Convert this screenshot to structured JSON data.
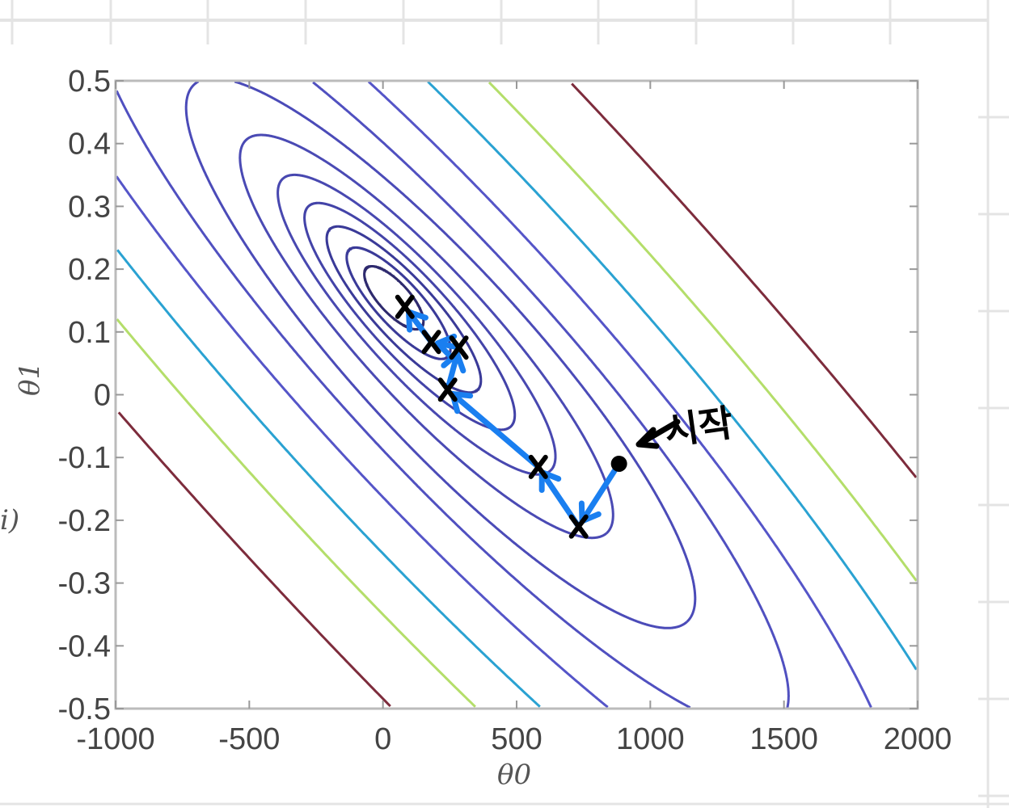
{
  "chart_data": {
    "type": "contour",
    "xlabel": "θ0",
    "ylabel": "θ1",
    "xlim": [
      -1000,
      2000
    ],
    "ylim": [
      -0.5,
      0.5
    ],
    "x_ticks": [
      "-1000",
      "-500",
      "0",
      "500",
      "1000",
      "1500",
      "2000"
    ],
    "y_ticks": [
      "0.5",
      "0.4",
      "0.3",
      "0.2",
      "0.1",
      "0",
      "-0.1",
      "-0.2",
      "-0.3",
      "-0.4",
      "-0.5"
    ],
    "grid": false,
    "contour_colors": [
      "#2e2a6e",
      "#3a3a98",
      "#3a3a98",
      "#4343a8",
      "#4848b0",
      "#4a4ab4",
      "#4b4bb8",
      "#5050c0",
      "#5555c8",
      "#2aa2d2",
      "#b4de6a",
      "#7d2c3c"
    ],
    "descent_path": {
      "color": "#1a7ff0",
      "points": [
        [
          883,
          -0.11
        ],
        [
          732,
          -0.21
        ],
        [
          581,
          -0.115
        ],
        [
          242,
          0.008
        ],
        [
          284,
          0.075
        ],
        [
          181,
          0.084
        ],
        [
          82,
          0.14
        ]
      ]
    },
    "annotation": {
      "text": "시작",
      "points_to": [
        883,
        -0.11
      ]
    }
  },
  "cut_off_text": "i)"
}
